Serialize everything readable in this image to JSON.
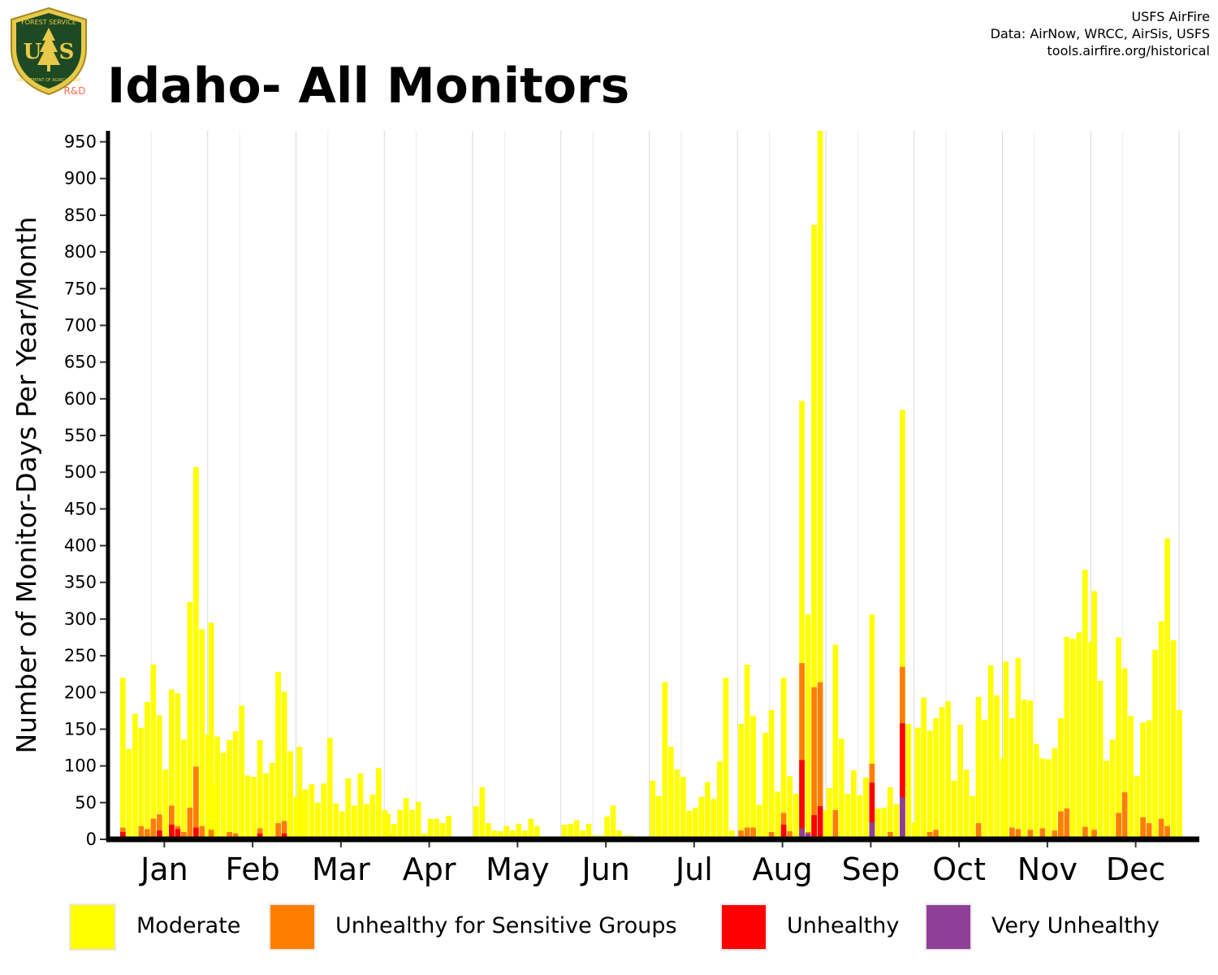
{
  "header": {
    "title": "Idaho- All Monitors",
    "credits": [
      "USFS AirFire",
      "Data: AirNow, WRCC, AirSis, USFS",
      "tools.airfire.org/historical"
    ],
    "logo": {
      "top_text": "FOREST SERVICE",
      "letters": "US",
      "bottom_text": "DEPARTMENT OF AGRICULTURE",
      "tag": "R&D"
    }
  },
  "chart_data": {
    "type": "bar",
    "stacked": true,
    "title": "Idaho- All Monitors",
    "xlabel": "",
    "ylabel": "Number of Monitor-Days Per Year/Month",
    "ylim": [
      0,
      965
    ],
    "yticks": [
      0,
      50,
      100,
      150,
      200,
      250,
      300,
      350,
      400,
      450,
      500,
      550,
      600,
      650,
      700,
      750,
      800,
      850,
      900,
      950
    ],
    "grid": "vertical month separators",
    "legend_position": "bottom",
    "categories": [
      "Jan",
      "Feb",
      "Mar",
      "Apr",
      "May",
      "Jun",
      "Jul",
      "Aug",
      "Sep",
      "Oct",
      "Nov",
      "Dec"
    ],
    "series_colors": {
      "Moderate": "#ffff00",
      "Unhealthy for Sensitive Groups": "#ff7e00",
      "Unhealthy": "#ff0000",
      "Very Unhealthy": "#8f3f97"
    },
    "bars": {
      "Jan": [
        [
          220,
          16,
          10,
          0
        ],
        [
          123,
          0,
          0,
          0
        ],
        [
          171,
          0,
          0,
          0
        ],
        [
          152,
          18,
          0,
          0
        ],
        [
          187,
          14,
          0,
          0
        ],
        [
          238,
          28,
          0,
          0
        ],
        [
          169,
          34,
          12,
          0
        ],
        [
          95,
          0,
          0,
          0
        ],
        [
          204,
          46,
          20,
          0
        ],
        [
          199,
          18,
          14,
          0
        ],
        [
          136,
          10,
          0,
          0
        ],
        [
          323,
          43,
          0,
          0
        ],
        [
          507,
          99,
          16,
          0
        ],
        [
          286,
          18,
          0,
          0
        ],
        [
          143,
          0,
          0,
          0
        ],
        [
          77,
          0,
          0,
          0
        ]
      ],
      "Feb": [
        [
          295,
          13,
          0,
          0
        ],
        [
          140,
          0,
          0,
          0
        ],
        [
          118,
          0,
          0,
          0
        ],
        [
          135,
          10,
          0,
          0
        ],
        [
          147,
          8,
          0,
          0
        ],
        [
          182,
          0,
          0,
          0
        ],
        [
          87,
          0,
          0,
          0
        ],
        [
          85,
          0,
          0,
          0
        ],
        [
          135,
          15,
          8,
          0
        ],
        [
          90,
          0,
          0,
          0
        ],
        [
          104,
          0,
          0,
          0
        ],
        [
          228,
          22,
          0,
          0
        ],
        [
          201,
          25,
          8,
          0
        ],
        [
          120,
          0,
          0,
          0
        ],
        [
          58,
          0,
          0,
          0
        ],
        [
          64,
          0,
          0,
          0
        ]
      ],
      "Mar": [
        [
          126,
          0,
          0,
          0
        ],
        [
          68,
          0,
          0,
          0
        ],
        [
          75,
          0,
          0,
          0
        ],
        [
          50,
          0,
          0,
          0
        ],
        [
          76,
          0,
          0,
          0
        ],
        [
          138,
          0,
          0,
          0
        ],
        [
          49,
          0,
          0,
          0
        ],
        [
          38,
          0,
          0,
          0
        ],
        [
          83,
          0,
          0,
          0
        ],
        [
          46,
          0,
          0,
          0
        ],
        [
          90,
          0,
          0,
          0
        ],
        [
          48,
          0,
          0,
          0
        ],
        [
          61,
          0,
          0,
          0
        ],
        [
          97,
          0,
          0,
          0
        ],
        [
          40,
          0,
          0,
          0
        ],
        [
          8,
          0,
          0,
          0
        ]
      ],
      "Apr": [
        [
          35,
          0,
          0,
          0
        ],
        [
          21,
          0,
          0,
          0
        ],
        [
          40,
          0,
          0,
          0
        ],
        [
          56,
          0,
          0,
          0
        ],
        [
          40,
          0,
          0,
          0
        ],
        [
          51,
          0,
          0,
          0
        ],
        [
          8,
          0,
          0,
          0
        ],
        [
          28,
          0,
          0,
          0
        ],
        [
          28,
          0,
          0,
          0
        ],
        [
          22,
          0,
          0,
          0
        ],
        [
          32,
          0,
          0,
          0
        ]
      ],
      "May": [
        [
          45,
          0,
          0,
          0
        ],
        [
          71,
          0,
          0,
          0
        ],
        [
          22,
          0,
          0,
          0
        ],
        [
          12,
          0,
          0,
          0
        ],
        [
          11,
          0,
          0,
          0
        ],
        [
          18,
          0,
          0,
          0
        ],
        [
          12,
          0,
          0,
          0
        ],
        [
          21,
          0,
          0,
          0
        ],
        [
          12,
          0,
          0,
          0
        ],
        [
          28,
          0,
          0,
          0
        ],
        [
          18,
          0,
          0,
          0
        ]
      ],
      "Jun": [
        [
          20,
          0,
          0,
          0
        ],
        [
          21,
          0,
          0,
          0
        ],
        [
          26,
          0,
          0,
          0
        ],
        [
          12,
          0,
          0,
          0
        ],
        [
          21,
          0,
          0,
          0
        ],
        [
          5,
          0,
          0,
          0
        ],
        [
          5,
          0,
          0,
          0
        ],
        [
          31,
          0,
          0,
          0
        ],
        [
          46,
          0,
          0,
          0
        ],
        [
          12,
          0,
          0,
          0
        ],
        [
          5,
          0,
          0,
          0
        ],
        [
          5,
          0,
          0,
          0
        ]
      ],
      "Jul": [
        [
          80,
          0,
          0,
          0
        ],
        [
          59,
          0,
          0,
          0
        ],
        [
          214,
          4,
          0,
          0
        ],
        [
          126,
          0,
          0,
          0
        ],
        [
          95,
          0,
          0,
          0
        ],
        [
          85,
          0,
          0,
          0
        ],
        [
          39,
          0,
          0,
          0
        ],
        [
          43,
          0,
          0,
          0
        ],
        [
          58,
          0,
          0,
          0
        ],
        [
          78,
          0,
          0,
          0
        ],
        [
          55,
          0,
          0,
          0
        ],
        [
          106,
          0,
          0,
          0
        ],
        [
          220,
          0,
          0,
          0
        ],
        [
          12,
          0,
          0,
          0
        ]
      ],
      "Aug": [
        [
          157,
          12,
          0,
          0
        ],
        [
          238,
          16,
          0,
          0
        ],
        [
          168,
          16,
          0,
          0
        ],
        [
          47,
          0,
          0,
          0
        ],
        [
          145,
          0,
          0,
          0
        ],
        [
          176,
          10,
          0,
          0
        ],
        [
          65,
          0,
          0,
          0
        ],
        [
          220,
          36,
          20,
          0
        ],
        [
          86,
          11,
          0,
          0
        ],
        [
          62,
          0,
          0,
          0
        ],
        [
          597,
          240,
          108,
          15
        ],
        [
          306,
          10,
          0,
          8
        ],
        [
          837,
          207,
          33,
          0
        ],
        [
          965,
          214,
          45,
          0
        ],
        [
          40,
          0,
          0,
          0
        ]
      ],
      "Sep": [
        [
          70,
          0,
          0,
          0
        ],
        [
          265,
          40,
          0,
          0
        ],
        [
          137,
          0,
          0,
          0
        ],
        [
          62,
          0,
          0,
          0
        ],
        [
          94,
          0,
          0,
          0
        ],
        [
          60,
          0,
          0,
          0
        ],
        [
          84,
          0,
          0,
          0
        ],
        [
          306,
          103,
          77,
          23
        ],
        [
          42,
          0,
          0,
          0
        ],
        [
          43,
          0,
          0,
          0
        ],
        [
          71,
          10,
          0,
          0
        ],
        [
          48,
          0,
          0,
          0
        ],
        [
          585,
          235,
          158,
          57
        ],
        [
          157,
          0,
          0,
          0
        ],
        [
          23,
          0,
          0,
          0
        ]
      ],
      "Oct": [
        [
          152,
          0,
          0,
          0
        ],
        [
          193,
          0,
          0,
          0
        ],
        [
          148,
          10,
          0,
          0
        ],
        [
          165,
          13,
          0,
          0
        ],
        [
          180,
          0,
          0,
          0
        ],
        [
          188,
          4,
          0,
          0
        ],
        [
          80,
          0,
          0,
          0
        ],
        [
          156,
          0,
          0,
          0
        ],
        [
          95,
          0,
          0,
          0
        ],
        [
          59,
          0,
          0,
          0
        ],
        [
          194,
          22,
          0,
          0
        ],
        [
          163,
          0,
          0,
          0
        ],
        [
          237,
          0,
          0,
          0
        ],
        [
          196,
          0,
          0,
          0
        ],
        [
          110,
          0,
          0,
          0
        ]
      ],
      "Nov": [
        [
          242,
          0,
          0,
          0
        ],
        [
          165,
          16,
          0,
          0
        ],
        [
          247,
          14,
          0,
          0
        ],
        [
          190,
          0,
          0,
          0
        ],
        [
          189,
          13,
          0,
          0
        ],
        [
          130,
          0,
          0,
          0
        ],
        [
          110,
          15,
          0,
          0
        ],
        [
          109,
          0,
          0,
          0
        ],
        [
          124,
          12,
          0,
          0
        ],
        [
          165,
          38,
          0,
          0
        ],
        [
          276,
          42,
          0,
          0
        ],
        [
          273,
          0,
          0,
          0
        ],
        [
          282,
          0,
          0,
          0
        ],
        [
          367,
          17,
          0,
          0
        ],
        [
          269,
          0,
          0,
          0
        ]
      ],
      "Dec": [
        [
          338,
          13,
          0,
          0
        ],
        [
          216,
          0,
          0,
          0
        ],
        [
          107,
          0,
          0,
          0
        ],
        [
          136,
          0,
          0,
          0
        ],
        [
          275,
          36,
          0,
          0
        ],
        [
          233,
          64,
          0,
          0
        ],
        [
          168,
          0,
          0,
          0
        ],
        [
          86,
          0,
          0,
          0
        ],
        [
          159,
          30,
          0,
          0
        ],
        [
          162,
          22,
          0,
          0
        ],
        [
          258,
          0,
          0,
          0
        ],
        [
          297,
          28,
          0,
          0
        ],
        [
          410,
          18,
          0,
          0
        ],
        [
          271,
          0,
          0,
          0
        ],
        [
          176,
          0,
          0,
          0
        ]
      ]
    }
  },
  "legend": {
    "items": [
      {
        "label": "Moderate",
        "color": "#ffff00"
      },
      {
        "label": "Unhealthy for Sensitive Groups",
        "color": "#ff7e00"
      },
      {
        "label": "Unhealthy",
        "color": "#ff0000"
      },
      {
        "label": "Very Unhealthy",
        "color": "#8f3f97"
      }
    ]
  }
}
